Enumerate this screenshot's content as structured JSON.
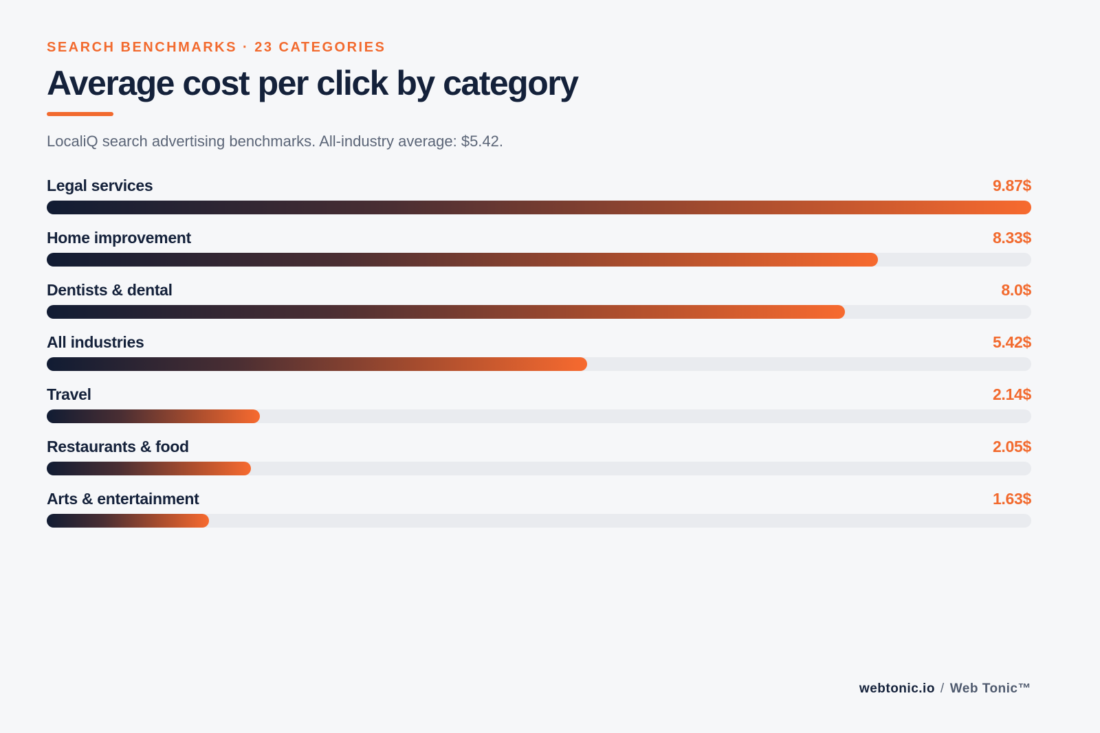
{
  "header": {
    "eyebrow": "SEARCH BENCHMARKS · 23 CATEGORIES",
    "title": "Average cost per click by category",
    "subtitle": "LocaliQ search advertising benchmarks. All-industry average: $5.42."
  },
  "chart_data": {
    "type": "bar",
    "orientation": "horizontal",
    "title": "Average cost per click by category",
    "subtitle": "LocaliQ search advertising benchmarks. All-industry average: $5.42.",
    "categories": [
      "Legal services",
      "Home improvement",
      "Dentists & dental",
      "All industries",
      "Travel",
      "Restaurants & food",
      "Arts & entertainment"
    ],
    "values": [
      9.87,
      8.33,
      8.0,
      5.42,
      2.14,
      2.05,
      1.63
    ],
    "value_labels": [
      "9.87$",
      "8.33$",
      "8.0$",
      "5.42$",
      "2.14$",
      "2.05$",
      "1.63$"
    ],
    "xlim": [
      0,
      9.87
    ],
    "grid": false,
    "legend": "none"
  },
  "colors": {
    "accent": "#f26a2e",
    "text_primary": "#14213a",
    "text_secondary": "#5b6577",
    "track": "#e9ebef",
    "bar_gradient_start": "#111c33",
    "bar_gradient_end": "#f76a2f",
    "background": "#f6f7f9"
  },
  "footer": {
    "domain": "webtonic.io",
    "separator": "/",
    "brand": "Web Tonic™"
  }
}
